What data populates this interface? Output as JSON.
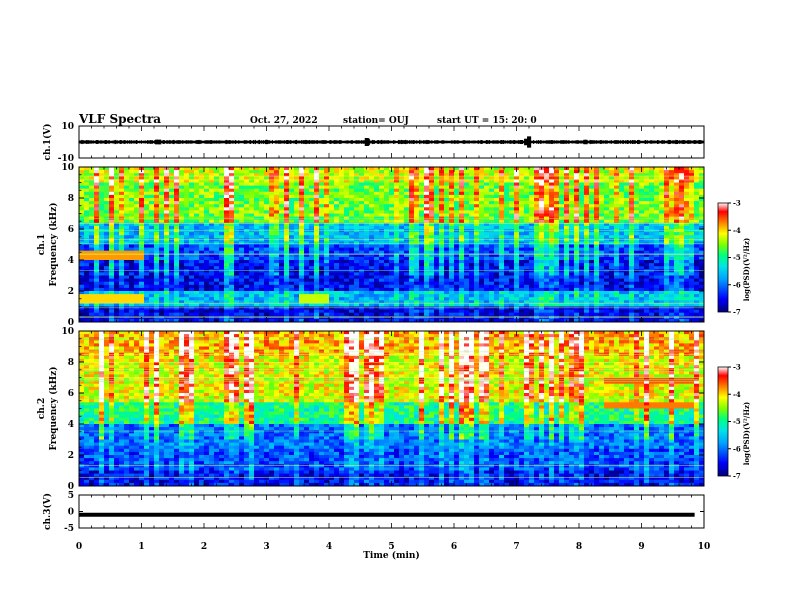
{
  "header": {
    "title": "VLF Spectra",
    "date": "Oct. 27, 2022",
    "station": "station= OUJ",
    "start_time": "start  UT  =   15: 20: 0"
  },
  "colors": {
    "spectrogram_scale": [
      "#00007a",
      "#0000ff",
      "#00a0ff",
      "#00e5e5",
      "#00ff7f",
      "#7fff00",
      "#ffff00",
      "#ff8000",
      "#ff0000",
      "#ffffff"
    ]
  },
  "chart_data": [
    {
      "type": "line",
      "name": "ch1-waveform",
      "ylabel": "ch.1(V)",
      "ylim": [
        -10,
        10
      ],
      "ytick_labels": [
        "10",
        "-10"
      ],
      "xlim": [
        0,
        10
      ],
      "baseline": 0,
      "spikes_min": [
        {
          "x": 1.25,
          "y": 1.5
        },
        {
          "x": 1.28,
          "y": -1.5
        },
        {
          "x": 3.0,
          "y": 1.3
        },
        {
          "x": 4.6,
          "y": 2.5
        },
        {
          "x": 4.63,
          "y": -2.0
        },
        {
          "x": 7.15,
          "y": 2.0
        },
        {
          "x": 7.2,
          "y": -3.5
        },
        {
          "x": 8.1,
          "y": 1.4
        }
      ]
    },
    {
      "type": "heatmap",
      "name": "ch1-spectrogram",
      "ylabel": "ch.1\nFrequency (kHz)",
      "ylim": [
        0,
        10
      ],
      "xlim": [
        0,
        10
      ],
      "ytick_labels": [
        "0",
        "2",
        "4",
        "6",
        "8",
        "10"
      ],
      "colorbar": {
        "label": "log(PSD)(V²/Hz)",
        "range": [
          -7,
          -3
        ],
        "ticks": [
          "-3",
          "-4",
          "-5",
          "-6",
          "-7"
        ]
      },
      "bands": [
        {
          "f": [
            9.0,
            10
          ],
          "level": -4.3
        },
        {
          "f": [
            6.5,
            9.0
          ],
          "level": -4.6
        },
        {
          "f": [
            5.0,
            6.5
          ],
          "level": -5.6
        },
        {
          "f": [
            4.0,
            5.0
          ],
          "level": -6.2
        },
        {
          "f": [
            2.0,
            4.0
          ],
          "level": -6.5
        },
        {
          "f": [
            1.0,
            2.0
          ],
          "level": -5.6
        },
        {
          "f": [
            0.0,
            1.0
          ],
          "level": -6.6
        }
      ],
      "hot_lines": [
        {
          "f": 4.3,
          "x": [
            0.0,
            1.0
          ],
          "level": -3.8
        },
        {
          "f": 1.5,
          "x": [
            0.0,
            1.0
          ],
          "level": -4.0
        },
        {
          "f": 1.5,
          "x": [
            3.5,
            4.0
          ],
          "level": -4.3
        }
      ]
    },
    {
      "type": "heatmap",
      "name": "ch2-spectrogram",
      "ylabel": "ch.2\nFrequency (kHz)",
      "ylim": [
        0,
        10
      ],
      "xlim": [
        0,
        10
      ],
      "ytick_labels": [
        "0",
        "2",
        "4",
        "6",
        "8",
        "10"
      ],
      "colorbar": {
        "label": "log(PSD)(V²/Hz)",
        "range": [
          -7,
          -3
        ],
        "ticks": [
          "-3",
          "-4",
          "-5",
          "-6",
          "-7"
        ]
      },
      "bands": [
        {
          "f": [
            8.5,
            10
          ],
          "level": -3.9
        },
        {
          "f": [
            5.5,
            8.5
          ],
          "level": -4.2
        },
        {
          "f": [
            4.0,
            5.5
          ],
          "level": -5.0
        },
        {
          "f": [
            2.5,
            4.0
          ],
          "level": -6.0
        },
        {
          "f": [
            1.0,
            2.5
          ],
          "level": -6.2
        },
        {
          "f": [
            0.0,
            1.0
          ],
          "level": -6.5
        }
      ],
      "hot_lines": [
        {
          "f": 6.8,
          "x": [
            8.4,
            9.8
          ],
          "level": -3.6
        },
        {
          "f": 5.2,
          "x": [
            8.4,
            9.8
          ],
          "level": -3.7
        },
        {
          "f": 7.7,
          "x": [
            6.0,
            6.6
          ],
          "level": -3.7
        }
      ]
    },
    {
      "type": "line",
      "name": "ch3-waveform",
      "ylabel": "ch.3(V)",
      "ylim": [
        -5,
        5
      ],
      "ytick_labels": [
        "5",
        "0",
        "-5"
      ],
      "xlim": [
        0,
        10
      ],
      "baseline": -1.0,
      "xlabel": "Time  (min)",
      "xtick_labels": [
        "0",
        "1",
        "2",
        "3",
        "4",
        "5",
        "6",
        "7",
        "8",
        "9",
        "10"
      ]
    }
  ]
}
